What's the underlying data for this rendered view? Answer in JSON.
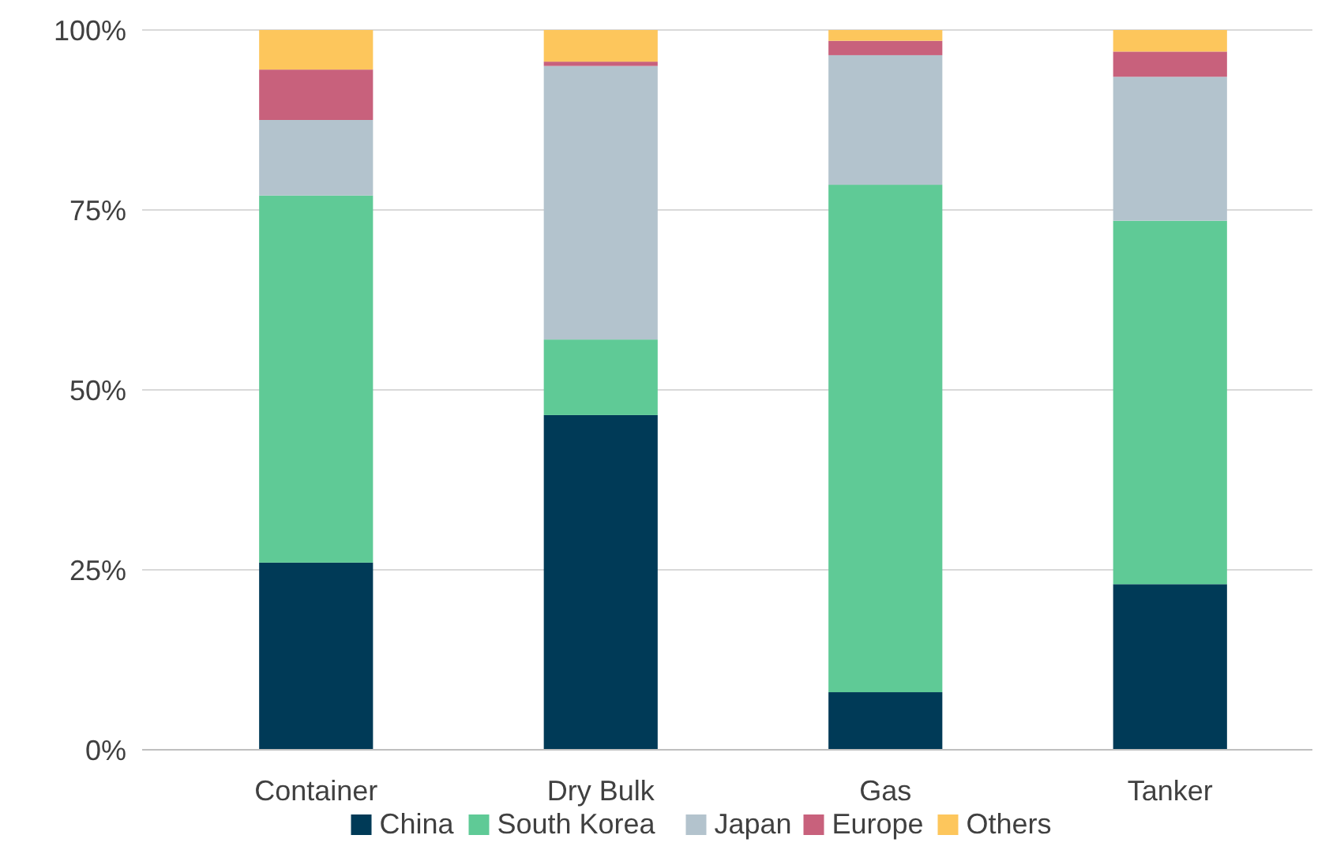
{
  "chart_data": {
    "type": "bar",
    "stacked": true,
    "categories": [
      "Container",
      "Dry Bulk",
      "Gas",
      "Tanker"
    ],
    "series": [
      {
        "name": "China",
        "color": "#003a57",
        "values": [
          26,
          46.5,
          8,
          23
        ]
      },
      {
        "name": "South Korea",
        "color": "#5fca96",
        "values": [
          51,
          10.5,
          70.5,
          50.5
        ]
      },
      {
        "name": "Japan",
        "color": "#b3c3cd",
        "values": [
          10.5,
          38,
          18,
          20
        ]
      },
      {
        "name": "Europe",
        "color": "#c8617c",
        "values": [
          7,
          0.6,
          2,
          3.5
        ]
      },
      {
        "name": "Others",
        "color": "#fdc65c",
        "values": [
          5.5,
          4.4,
          1.5,
          3
        ]
      }
    ],
    "ylim": [
      0,
      100
    ],
    "yticks": [
      {
        "value": 0,
        "label": "0%"
      },
      {
        "value": 25,
        "label": "25%"
      },
      {
        "value": 50,
        "label": "50%"
      },
      {
        "value": 75,
        "label": "75%"
      },
      {
        "value": 100,
        "label": "100%"
      }
    ],
    "grid": "y",
    "legend": "bottom"
  }
}
